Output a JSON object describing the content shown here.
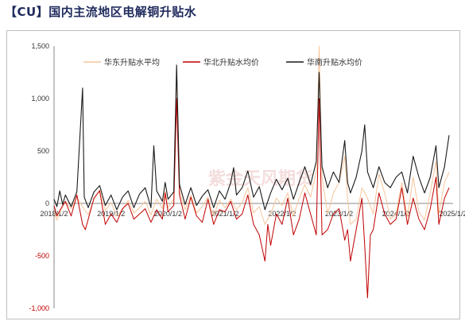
{
  "page_title": "【CU】国内主流地区电解铜升贴水",
  "watermark": "紫金天风期货",
  "chart_data": {
    "type": "line",
    "title": "【CU】国内主流地区电解铜升贴水",
    "xlabel": "",
    "ylabel": "",
    "ylim": [
      -1000,
      1500
    ],
    "yticks": [
      "1,500",
      "1,000",
      "500",
      "0",
      "-500",
      "-1,000"
    ],
    "ytick_values": [
      1500,
      1000,
      500,
      0,
      -500,
      -1000
    ],
    "xlim": [
      2018.0,
      2025.0
    ],
    "xticks": [
      "2018/1/2",
      "2019/1/2",
      "2020/1/2",
      "2021/1/2",
      "2022/1/2",
      "2023/1/2",
      "2024/1/2",
      "2025/1/2"
    ],
    "xtick_values": [
      2018.0,
      2019.0,
      2020.0,
      2021.0,
      2022.0,
      2023.0,
      2024.0,
      2025.0
    ],
    "legend_position": "top",
    "grid": false,
    "series": [
      {
        "name": "华东升贴水平均",
        "color": "#f6c59a",
        "points": [
          [
            2018.0,
            -80
          ],
          [
            2018.05,
            -160
          ],
          [
            2018.12,
            -60
          ],
          [
            2018.2,
            20
          ],
          [
            2018.3,
            -50
          ],
          [
            2018.4,
            60
          ],
          [
            2018.5,
            -30
          ],
          [
            2018.6,
            -110
          ],
          [
            2018.7,
            40
          ],
          [
            2018.8,
            130
          ],
          [
            2018.9,
            -70
          ],
          [
            2019.0,
            10
          ],
          [
            2019.1,
            -120
          ],
          [
            2019.2,
            -60
          ],
          [
            2019.3,
            30
          ],
          [
            2019.4,
            -90
          ],
          [
            2019.5,
            -40
          ],
          [
            2019.6,
            20
          ],
          [
            2019.7,
            -110
          ],
          [
            2019.8,
            40
          ],
          [
            2019.9,
            -50
          ],
          [
            2019.95,
            120
          ],
          [
            2020.0,
            -40
          ],
          [
            2020.1,
            40
          ],
          [
            2020.15,
            1250
          ],
          [
            2020.2,
            120
          ],
          [
            2020.3,
            -60
          ],
          [
            2020.4,
            80
          ],
          [
            2020.5,
            -90
          ],
          [
            2020.6,
            -30
          ],
          [
            2020.7,
            60
          ],
          [
            2020.8,
            -120
          ],
          [
            2020.9,
            30
          ],
          [
            2021.0,
            -40
          ],
          [
            2021.1,
            40
          ],
          [
            2021.2,
            -60
          ],
          [
            2021.3,
            10
          ],
          [
            2021.4,
            150
          ],
          [
            2021.5,
            -90
          ],
          [
            2021.6,
            -30
          ],
          [
            2021.7,
            -200
          ],
          [
            2021.8,
            -100
          ],
          [
            2021.9,
            50
          ],
          [
            2022.0,
            -20
          ],
          [
            2022.1,
            100
          ],
          [
            2022.2,
            -120
          ],
          [
            2022.3,
            50
          ],
          [
            2022.4,
            180
          ],
          [
            2022.5,
            60
          ],
          [
            2022.6,
            300
          ],
          [
            2022.65,
            1500
          ],
          [
            2022.7,
            250
          ],
          [
            2022.8,
            -100
          ],
          [
            2022.9,
            100
          ],
          [
            2023.0,
            200
          ],
          [
            2023.1,
            450
          ],
          [
            2023.15,
            50
          ],
          [
            2023.2,
            -200
          ],
          [
            2023.3,
            -150
          ],
          [
            2023.4,
            150
          ],
          [
            2023.5,
            50
          ],
          [
            2023.6,
            -100
          ],
          [
            2023.7,
            280
          ],
          [
            2023.8,
            100
          ],
          [
            2023.9,
            -150
          ],
          [
            2024.0,
            -100
          ],
          [
            2024.1,
            200
          ],
          [
            2024.2,
            -130
          ],
          [
            2024.3,
            250
          ],
          [
            2024.4,
            -80
          ],
          [
            2024.5,
            -160
          ],
          [
            2024.6,
            100
          ],
          [
            2024.7,
            400
          ],
          [
            2024.75,
            -100
          ],
          [
            2024.85,
            200
          ],
          [
            2024.93,
            300
          ]
        ]
      },
      {
        "name": "华北升贴水均价",
        "color": "#c00000",
        "points": [
          [
            2018.0,
            -20
          ],
          [
            2018.05,
            -120
          ],
          [
            2018.12,
            -50
          ],
          [
            2018.2,
            20
          ],
          [
            2018.3,
            -120
          ],
          [
            2018.4,
            80
          ],
          [
            2018.5,
            -200
          ],
          [
            2018.55,
            -250
          ],
          [
            2018.6,
            -150
          ],
          [
            2018.7,
            50
          ],
          [
            2018.8,
            120
          ],
          [
            2018.9,
            -200
          ],
          [
            2019.0,
            -100
          ],
          [
            2019.1,
            -180
          ],
          [
            2019.2,
            -50
          ],
          [
            2019.3,
            0
          ],
          [
            2019.4,
            -150
          ],
          [
            2019.5,
            -100
          ],
          [
            2019.6,
            -50
          ],
          [
            2019.7,
            -180
          ],
          [
            2019.8,
            -60
          ],
          [
            2019.9,
            -150
          ],
          [
            2019.95,
            100
          ],
          [
            2020.0,
            -80
          ],
          [
            2020.1,
            -20
          ],
          [
            2020.15,
            1000
          ],
          [
            2020.2,
            80
          ],
          [
            2020.3,
            -150
          ],
          [
            2020.4,
            60
          ],
          [
            2020.5,
            -120
          ],
          [
            2020.6,
            -180
          ],
          [
            2020.7,
            40
          ],
          [
            2020.8,
            -200
          ],
          [
            2020.9,
            -60
          ],
          [
            2021.0,
            -80
          ],
          [
            2021.1,
            20
          ],
          [
            2021.2,
            -150
          ],
          [
            2021.3,
            -100
          ],
          [
            2021.4,
            80
          ],
          [
            2021.5,
            -200
          ],
          [
            2021.6,
            -300
          ],
          [
            2021.7,
            -550
          ],
          [
            2021.75,
            -200
          ],
          [
            2021.8,
            -400
          ],
          [
            2021.9,
            -100
          ],
          [
            2022.0,
            -200
          ],
          [
            2022.1,
            50
          ],
          [
            2022.2,
            -300
          ],
          [
            2022.3,
            -150
          ],
          [
            2022.4,
            100
          ],
          [
            2022.5,
            -100
          ],
          [
            2022.6,
            -300
          ],
          [
            2022.65,
            1000
          ],
          [
            2022.7,
            -300
          ],
          [
            2022.8,
            -250
          ],
          [
            2022.9,
            -100
          ],
          [
            2023.0,
            -50
          ],
          [
            2023.1,
            -350
          ],
          [
            2023.15,
            -250
          ],
          [
            2023.2,
            -550
          ],
          [
            2023.3,
            -250
          ],
          [
            2023.4,
            50
          ],
          [
            2023.45,
            -400
          ],
          [
            2023.5,
            -900
          ],
          [
            2023.55,
            -300
          ],
          [
            2023.6,
            -250
          ],
          [
            2023.7,
            100
          ],
          [
            2023.8,
            -100
          ],
          [
            2023.9,
            -200
          ],
          [
            2024.0,
            -150
          ],
          [
            2024.1,
            150
          ],
          [
            2024.2,
            -200
          ],
          [
            2024.3,
            50
          ],
          [
            2024.4,
            -150
          ],
          [
            2024.5,
            -250
          ],
          [
            2024.6,
            -50
          ],
          [
            2024.7,
            250
          ],
          [
            2024.75,
            -200
          ],
          [
            2024.85,
            50
          ],
          [
            2024.93,
            150
          ]
        ]
      },
      {
        "name": "华南升贴水均价",
        "color": "#1a1a1a",
        "points": [
          [
            2018.0,
            40
          ],
          [
            2018.05,
            -30
          ],
          [
            2018.1,
            120
          ],
          [
            2018.15,
            -10
          ],
          [
            2018.2,
            80
          ],
          [
            2018.3,
            -30
          ],
          [
            2018.4,
            110
          ],
          [
            2018.5,
            1100
          ],
          [
            2018.53,
            60
          ],
          [
            2018.6,
            -40
          ],
          [
            2018.7,
            110
          ],
          [
            2018.8,
            170
          ],
          [
            2018.9,
            -20
          ],
          [
            2019.0,
            80
          ],
          [
            2019.1,
            -60
          ],
          [
            2019.2,
            60
          ],
          [
            2019.3,
            120
          ],
          [
            2019.4,
            -40
          ],
          [
            2019.5,
            90
          ],
          [
            2019.6,
            150
          ],
          [
            2019.7,
            -40
          ],
          [
            2019.75,
            550
          ],
          [
            2019.8,
            120
          ],
          [
            2019.9,
            20
          ],
          [
            2019.95,
            200
          ],
          [
            2020.0,
            40
          ],
          [
            2020.1,
            110
          ],
          [
            2020.15,
            1320
          ],
          [
            2020.2,
            180
          ],
          [
            2020.3,
            -10
          ],
          [
            2020.4,
            150
          ],
          [
            2020.5,
            -20
          ],
          [
            2020.6,
            70
          ],
          [
            2020.7,
            130
          ],
          [
            2020.8,
            -40
          ],
          [
            2020.9,
            120
          ],
          [
            2021.0,
            40
          ],
          [
            2021.1,
            200
          ],
          [
            2021.15,
            340
          ],
          [
            2021.2,
            80
          ],
          [
            2021.3,
            150
          ],
          [
            2021.4,
            310
          ],
          [
            2021.5,
            60
          ],
          [
            2021.6,
            160
          ],
          [
            2021.7,
            -60
          ],
          [
            2021.8,
            100
          ],
          [
            2021.9,
            230
          ],
          [
            2022.0,
            130
          ],
          [
            2022.1,
            240
          ],
          [
            2022.2,
            40
          ],
          [
            2022.3,
            200
          ],
          [
            2022.4,
            350
          ],
          [
            2022.5,
            180
          ],
          [
            2022.6,
            400
          ],
          [
            2022.65,
            1250
          ],
          [
            2022.7,
            350
          ],
          [
            2022.8,
            150
          ],
          [
            2022.9,
            300
          ],
          [
            2023.0,
            200
          ],
          [
            2023.1,
            600
          ],
          [
            2023.15,
            200
          ],
          [
            2023.2,
            100
          ],
          [
            2023.3,
            250
          ],
          [
            2023.4,
            500
          ],
          [
            2023.45,
            750
          ],
          [
            2023.5,
            300
          ],
          [
            2023.6,
            150
          ],
          [
            2023.7,
            350
          ],
          [
            2023.8,
            200
          ],
          [
            2023.9,
            150
          ],
          [
            2024.0,
            250
          ],
          [
            2024.1,
            300
          ],
          [
            2024.2,
            100
          ],
          [
            2024.3,
            450
          ],
          [
            2024.4,
            250
          ],
          [
            2024.5,
            100
          ],
          [
            2024.6,
            250
          ],
          [
            2024.7,
            550
          ],
          [
            2024.75,
            150
          ],
          [
            2024.85,
            350
          ],
          [
            2024.93,
            650
          ]
        ]
      }
    ]
  }
}
